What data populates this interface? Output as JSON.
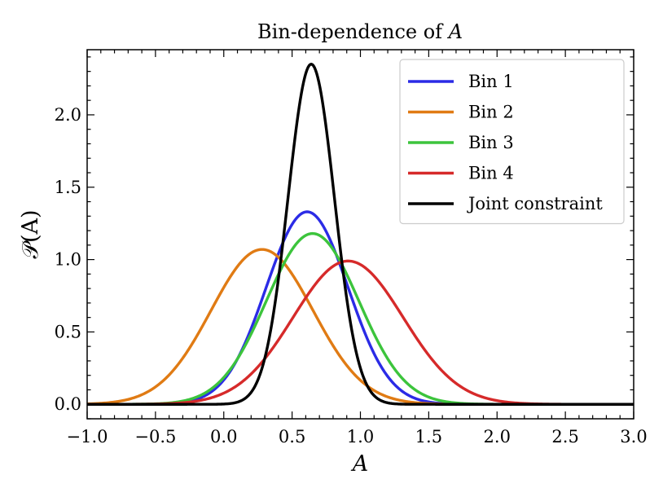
{
  "chart_data": {
    "type": "line",
    "title": "Bin-dependence of A",
    "title_prefix": "Bin-dependence of ",
    "title_variable": "A",
    "xlabel": "A",
    "ylabel": "𝒫(A)",
    "xlim": [
      -1.0,
      3.0
    ],
    "ylim": [
      -0.1,
      2.45
    ],
    "xticks": [
      -1.0,
      -0.5,
      0.0,
      0.5,
      1.0,
      1.5,
      2.0,
      2.5,
      3.0
    ],
    "xtick_labels": [
      "−1.0",
      "−0.5",
      "0.0",
      "0.5",
      "1.0",
      "1.5",
      "2.0",
      "2.5",
      "3.0"
    ],
    "yticks": [
      0.0,
      0.5,
      1.0,
      1.5,
      2.0
    ],
    "ytick_labels": [
      "0.0",
      "0.5",
      "1.0",
      "1.5",
      "2.0"
    ],
    "legend_position": "top-right",
    "distribution": "gaussian",
    "series": [
      {
        "name": "Bin 1",
        "color": "#2b2be6",
        "mean": 0.61,
        "sigma": 0.3,
        "peak": 1.33
      },
      {
        "name": "Bin 2",
        "color": "#e07b14",
        "mean": 0.28,
        "sigma": 0.373,
        "peak": 1.07
      },
      {
        "name": "Bin 3",
        "color": "#3cc43c",
        "mean": 0.65,
        "sigma": 0.338,
        "peak": 1.18
      },
      {
        "name": "Bin 4",
        "color": "#d62a2a",
        "mean": 0.91,
        "sigma": 0.403,
        "peak": 0.99
      },
      {
        "name": "Joint constraint",
        "color": "#000000",
        "mean": 0.64,
        "sigma": 0.17,
        "peak": 2.35
      }
    ]
  }
}
